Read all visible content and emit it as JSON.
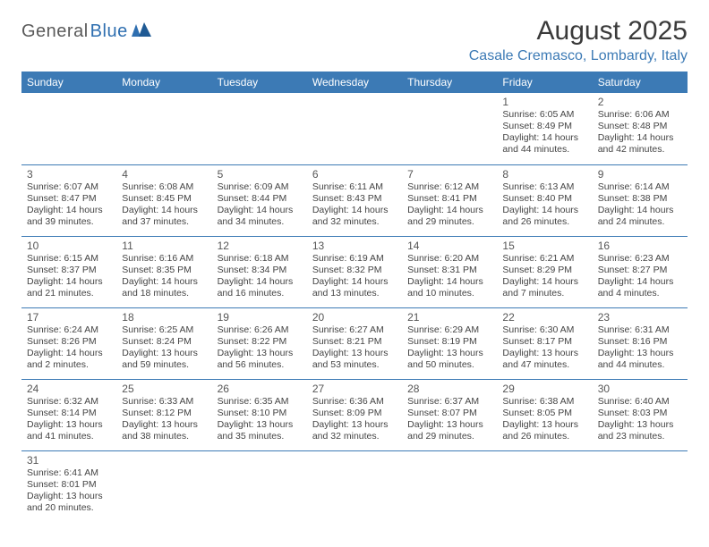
{
  "logo": {
    "text1": "General",
    "text2": "Blue"
  },
  "title": "August 2025",
  "location": "Casale Cremasco, Lombardy, Italy",
  "day_headers": [
    "Sunday",
    "Monday",
    "Tuesday",
    "Wednesday",
    "Thursday",
    "Friday",
    "Saturday"
  ],
  "colors": {
    "header_bg": "#3c7ab5",
    "header_text": "#ffffff",
    "location_text": "#3c7ab5",
    "border": "#3c7ab5",
    "body_text": "#444444"
  },
  "weeks": [
    [
      null,
      null,
      null,
      null,
      null,
      {
        "n": "1",
        "sr": "Sunrise: 6:05 AM",
        "ss": "Sunset: 8:49 PM",
        "d1": "Daylight: 14 hours",
        "d2": "and 44 minutes."
      },
      {
        "n": "2",
        "sr": "Sunrise: 6:06 AM",
        "ss": "Sunset: 8:48 PM",
        "d1": "Daylight: 14 hours",
        "d2": "and 42 minutes."
      }
    ],
    [
      {
        "n": "3",
        "sr": "Sunrise: 6:07 AM",
        "ss": "Sunset: 8:47 PM",
        "d1": "Daylight: 14 hours",
        "d2": "and 39 minutes."
      },
      {
        "n": "4",
        "sr": "Sunrise: 6:08 AM",
        "ss": "Sunset: 8:45 PM",
        "d1": "Daylight: 14 hours",
        "d2": "and 37 minutes."
      },
      {
        "n": "5",
        "sr": "Sunrise: 6:09 AM",
        "ss": "Sunset: 8:44 PM",
        "d1": "Daylight: 14 hours",
        "d2": "and 34 minutes."
      },
      {
        "n": "6",
        "sr": "Sunrise: 6:11 AM",
        "ss": "Sunset: 8:43 PM",
        "d1": "Daylight: 14 hours",
        "d2": "and 32 minutes."
      },
      {
        "n": "7",
        "sr": "Sunrise: 6:12 AM",
        "ss": "Sunset: 8:41 PM",
        "d1": "Daylight: 14 hours",
        "d2": "and 29 minutes."
      },
      {
        "n": "8",
        "sr": "Sunrise: 6:13 AM",
        "ss": "Sunset: 8:40 PM",
        "d1": "Daylight: 14 hours",
        "d2": "and 26 minutes."
      },
      {
        "n": "9",
        "sr": "Sunrise: 6:14 AM",
        "ss": "Sunset: 8:38 PM",
        "d1": "Daylight: 14 hours",
        "d2": "and 24 minutes."
      }
    ],
    [
      {
        "n": "10",
        "sr": "Sunrise: 6:15 AM",
        "ss": "Sunset: 8:37 PM",
        "d1": "Daylight: 14 hours",
        "d2": "and 21 minutes."
      },
      {
        "n": "11",
        "sr": "Sunrise: 6:16 AM",
        "ss": "Sunset: 8:35 PM",
        "d1": "Daylight: 14 hours",
        "d2": "and 18 minutes."
      },
      {
        "n": "12",
        "sr": "Sunrise: 6:18 AM",
        "ss": "Sunset: 8:34 PM",
        "d1": "Daylight: 14 hours",
        "d2": "and 16 minutes."
      },
      {
        "n": "13",
        "sr": "Sunrise: 6:19 AM",
        "ss": "Sunset: 8:32 PM",
        "d1": "Daylight: 14 hours",
        "d2": "and 13 minutes."
      },
      {
        "n": "14",
        "sr": "Sunrise: 6:20 AM",
        "ss": "Sunset: 8:31 PM",
        "d1": "Daylight: 14 hours",
        "d2": "and 10 minutes."
      },
      {
        "n": "15",
        "sr": "Sunrise: 6:21 AM",
        "ss": "Sunset: 8:29 PM",
        "d1": "Daylight: 14 hours",
        "d2": "and 7 minutes."
      },
      {
        "n": "16",
        "sr": "Sunrise: 6:23 AM",
        "ss": "Sunset: 8:27 PM",
        "d1": "Daylight: 14 hours",
        "d2": "and 4 minutes."
      }
    ],
    [
      {
        "n": "17",
        "sr": "Sunrise: 6:24 AM",
        "ss": "Sunset: 8:26 PM",
        "d1": "Daylight: 14 hours",
        "d2": "and 2 minutes."
      },
      {
        "n": "18",
        "sr": "Sunrise: 6:25 AM",
        "ss": "Sunset: 8:24 PM",
        "d1": "Daylight: 13 hours",
        "d2": "and 59 minutes."
      },
      {
        "n": "19",
        "sr": "Sunrise: 6:26 AM",
        "ss": "Sunset: 8:22 PM",
        "d1": "Daylight: 13 hours",
        "d2": "and 56 minutes."
      },
      {
        "n": "20",
        "sr": "Sunrise: 6:27 AM",
        "ss": "Sunset: 8:21 PM",
        "d1": "Daylight: 13 hours",
        "d2": "and 53 minutes."
      },
      {
        "n": "21",
        "sr": "Sunrise: 6:29 AM",
        "ss": "Sunset: 8:19 PM",
        "d1": "Daylight: 13 hours",
        "d2": "and 50 minutes."
      },
      {
        "n": "22",
        "sr": "Sunrise: 6:30 AM",
        "ss": "Sunset: 8:17 PM",
        "d1": "Daylight: 13 hours",
        "d2": "and 47 minutes."
      },
      {
        "n": "23",
        "sr": "Sunrise: 6:31 AM",
        "ss": "Sunset: 8:16 PM",
        "d1": "Daylight: 13 hours",
        "d2": "and 44 minutes."
      }
    ],
    [
      {
        "n": "24",
        "sr": "Sunrise: 6:32 AM",
        "ss": "Sunset: 8:14 PM",
        "d1": "Daylight: 13 hours",
        "d2": "and 41 minutes."
      },
      {
        "n": "25",
        "sr": "Sunrise: 6:33 AM",
        "ss": "Sunset: 8:12 PM",
        "d1": "Daylight: 13 hours",
        "d2": "and 38 minutes."
      },
      {
        "n": "26",
        "sr": "Sunrise: 6:35 AM",
        "ss": "Sunset: 8:10 PM",
        "d1": "Daylight: 13 hours",
        "d2": "and 35 minutes."
      },
      {
        "n": "27",
        "sr": "Sunrise: 6:36 AM",
        "ss": "Sunset: 8:09 PM",
        "d1": "Daylight: 13 hours",
        "d2": "and 32 minutes."
      },
      {
        "n": "28",
        "sr": "Sunrise: 6:37 AM",
        "ss": "Sunset: 8:07 PM",
        "d1": "Daylight: 13 hours",
        "d2": "and 29 minutes."
      },
      {
        "n": "29",
        "sr": "Sunrise: 6:38 AM",
        "ss": "Sunset: 8:05 PM",
        "d1": "Daylight: 13 hours",
        "d2": "and 26 minutes."
      },
      {
        "n": "30",
        "sr": "Sunrise: 6:40 AM",
        "ss": "Sunset: 8:03 PM",
        "d1": "Daylight: 13 hours",
        "d2": "and 23 minutes."
      }
    ],
    [
      {
        "n": "31",
        "sr": "Sunrise: 6:41 AM",
        "ss": "Sunset: 8:01 PM",
        "d1": "Daylight: 13 hours",
        "d2": "and 20 minutes."
      },
      null,
      null,
      null,
      null,
      null,
      null
    ]
  ]
}
